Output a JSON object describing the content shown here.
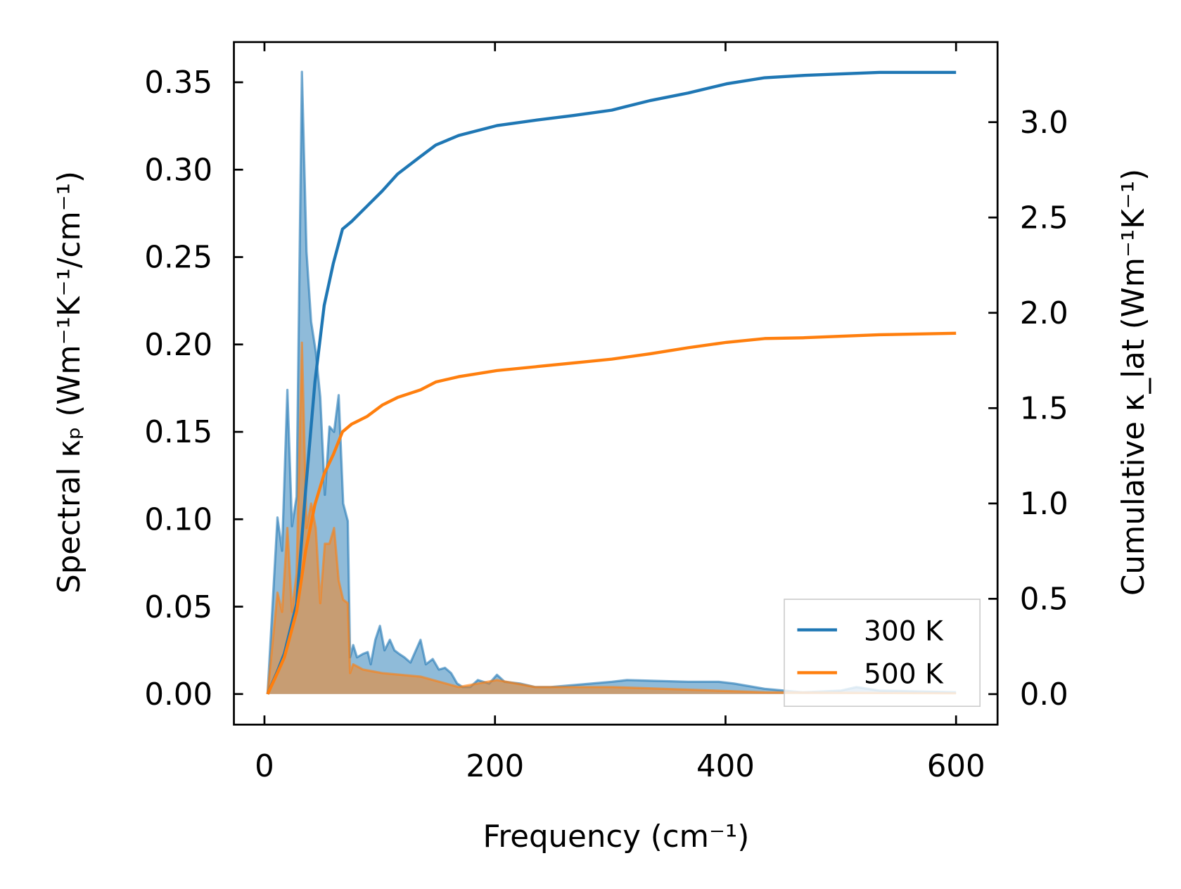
{
  "chart_data": {
    "type": "line",
    "title": "",
    "xlabel": "Frequency (cm⁻¹)",
    "ylabel_left": "Spectral κₚ (Wm⁻¹K⁻¹/cm⁻¹)",
    "ylabel_right": "Cumulative κ_lat (Wm⁻¹K⁻¹)",
    "xlim": [
      -26.5,
      636
    ],
    "ylim_left": [
      -0.0175,
      0.373
    ],
    "ylim_right": [
      -0.16,
      3.42
    ],
    "xticks": [
      0,
      200,
      400,
      600
    ],
    "xtick_labels": [
      "0",
      "200",
      "400",
      "600"
    ],
    "yticks_left": [
      0,
      0.05,
      0.1,
      0.15,
      0.2,
      0.25,
      0.3,
      0.35
    ],
    "ytick_labels_left": [
      "0.00",
      "0.05",
      "0.10",
      "0.15",
      "0.20",
      "0.25",
      "0.30",
      "0.35"
    ],
    "yticks_right": [
      0,
      0.5,
      1.0,
      1.5,
      2.0,
      2.5,
      3.0
    ],
    "ytick_labels_right": [
      "0.0",
      "0.5",
      "1.0",
      "1.5",
      "2.0",
      "2.5",
      "3.0"
    ],
    "grid": false,
    "legend_position": "lower-right",
    "colors": {
      "300 K": "#1f77b4",
      "500 K": "#ff7f0e"
    },
    "series": [
      {
        "name": "300 K",
        "spectral": {
          "x": [
            2.7,
            11.3,
            15.3,
            19.9,
            23.9,
            27.9,
            32.5,
            36.5,
            40.5,
            44.5,
            48.4,
            52.4,
            56.4,
            60.4,
            64.4,
            68.3,
            72.3,
            74.3,
            77,
            80.3,
            85.6,
            89.6,
            92.2,
            96.2,
            100.2,
            104.2,
            108.8,
            112.8,
            116.8,
            121.4,
            126.7,
            135.4,
            140,
            146,
            151.3,
            156.6,
            161.9,
            167.2,
            171.9,
            178.5,
            185.1,
            195,
            201.7,
            208.4,
            221.6,
            234.9,
            248.2,
            301.3,
            314.5,
            367.6,
            394.2,
            407.4,
            434,
            467.2,
            500.3,
            513.6,
            533.5,
            600
          ],
          "y": [
            0,
            0.101,
            0.082,
            0.174,
            0.096,
            0.113,
            0.356,
            0.253,
            0.213,
            0.196,
            0.17,
            0.114,
            0.153,
            0.15,
            0.171,
            0.109,
            0.099,
            0.021,
            0.028,
            0.021,
            0.023,
            0.024,
            0.017,
            0.031,
            0.039,
            0.025,
            0.031,
            0.025,
            0.023,
            0.021,
            0.018,
            0.031,
            0.017,
            0.02,
            0.014,
            0.015,
            0.012,
            0.006,
            0.004,
            0.004,
            0.008,
            0.006,
            0.011,
            0.007,
            0.006,
            0.004,
            0.004,
            0.007,
            0.008,
            0.007,
            0.007,
            0.006,
            0.003,
            0.001,
            0.002,
            0.004,
            0.002,
            0.001
          ]
        },
        "cumulative": {
          "x": [
            2.7,
            11.3,
            17.3,
            27.9,
            35.8,
            43.8,
            51.8,
            59.7,
            67.7,
            75.6,
            88.9,
            102.2,
            115.5,
            135.4,
            148.6,
            168.5,
            201.7,
            234.9,
            268.1,
            301.3,
            334.4,
            367.6,
            400.8,
            434,
            467.2,
            500.3,
            533.5,
            600
          ],
          "y": [
            0,
            0.12,
            0.213,
            0.473,
            1.075,
            1.637,
            2.038,
            2.258,
            2.439,
            2.479,
            2.559,
            2.639,
            2.728,
            2.82,
            2.88,
            2.93,
            2.982,
            3.01,
            3.035,
            3.063,
            3.113,
            3.153,
            3.201,
            3.233,
            3.245,
            3.253,
            3.261,
            3.261
          ]
        }
      },
      {
        "name": "500 K",
        "spectral": {
          "x": [
            2.7,
            11.3,
            15.3,
            19.9,
            23.9,
            27.9,
            32.5,
            36.5,
            40.5,
            44.5,
            48.4,
            52.4,
            56.4,
            60.4,
            64.4,
            68.3,
            72.3,
            74.3,
            77,
            85.6,
            102.2,
            135.4,
            168.5,
            201.7,
            234.9,
            301.3,
            434,
            600
          ],
          "y": [
            0,
            0.058,
            0.047,
            0.095,
            0.047,
            0.069,
            0.201,
            0.095,
            0.109,
            0.095,
            0.052,
            0.086,
            0.086,
            0.095,
            0.065,
            0.054,
            0.052,
            0.012,
            0.017,
            0.014,
            0.012,
            0.01,
            0.004,
            0.008,
            0.004,
            0.004,
            0.001,
            0.0004
          ]
        },
        "cumulative": {
          "x": [
            2.7,
            11.3,
            17.3,
            27.9,
            35.8,
            43.8,
            51.8,
            59.7,
            67.7,
            75.6,
            88.9,
            102.2,
            115.5,
            135.4,
            148.6,
            168.5,
            201.7,
            234.9,
            268.1,
            301.3,
            334.4,
            367.6,
            400.8,
            434,
            467.2,
            500.3,
            533.5,
            600
          ],
          "y": [
            0,
            0.112,
            0.193,
            0.433,
            0.754,
            0.995,
            1.155,
            1.256,
            1.376,
            1.416,
            1.456,
            1.516,
            1.556,
            1.596,
            1.637,
            1.665,
            1.697,
            1.717,
            1.737,
            1.757,
            1.785,
            1.817,
            1.845,
            1.865,
            1.869,
            1.877,
            1.885,
            1.893
          ]
        }
      }
    ],
    "legend": [
      "300 K",
      "500 K"
    ]
  }
}
